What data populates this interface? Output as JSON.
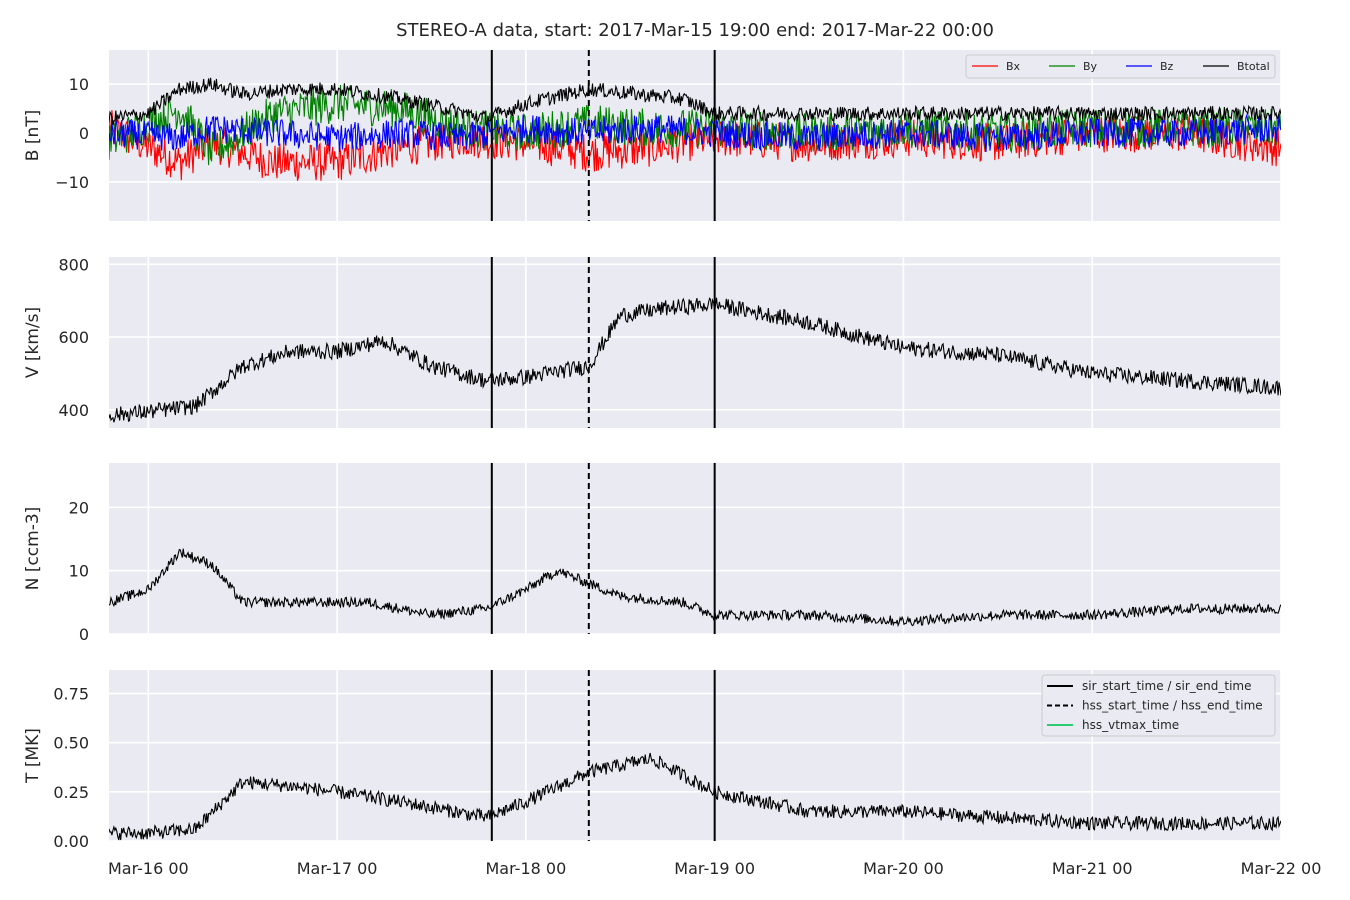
{
  "title": "STEREO-A data, start: 2017-Mar-15 19:00  end: 2017-Mar-22 00:00",
  "chart_data": {
    "type": "line",
    "x_axis": {
      "start": "2017-03-15T19:00",
      "end": "2017-03-22T00:00",
      "tick_labels": [
        "Mar-16 00",
        "Mar-17 00",
        "Mar-18 00",
        "Mar-19 00",
        "Mar-20 00",
        "Mar-21 00",
        "Mar-22 00"
      ],
      "tick_times": [
        "2017-03-16T00:00",
        "2017-03-17T00:00",
        "2017-03-18T00:00",
        "2017-03-19T00:00",
        "2017-03-20T00:00",
        "2017-03-21T00:00",
        "2017-03-22T00:00"
      ]
    },
    "vertical_lines": {
      "sir_start_time": "2017-03-17T19:40",
      "hss_start_time": "2017-03-18T08:00",
      "sir_end_time": "2017-03-19T00:00"
    },
    "grid": true,
    "background": "#eaeaf2",
    "panels": [
      {
        "ylabel": "B [nT]",
        "ylim": [
          -18,
          17
        ],
        "yticks": [
          -10,
          0,
          10
        ],
        "ytick_labels": [
          "−10",
          "0",
          "10"
        ],
        "legend": "top-right",
        "series": [
          {
            "name": "Bx",
            "color": "#ff0000",
            "x": [
              "2017-03-15T19:00",
              "2017-03-16T04:00",
              "2017-03-16T08:00",
              "2017-03-16T16:00",
              "2017-03-17T00:00",
              "2017-03-17T08:00",
              "2017-03-17T16:00",
              "2017-03-18T00:00",
              "2017-03-18T08:00",
              "2017-03-18T16:00",
              "2017-03-19T00:00",
              "2017-03-19T12:00",
              "2017-03-20T00:00",
              "2017-03-20T12:00",
              "2017-03-21T00:00",
              "2017-03-21T12:00",
              "2017-03-22T00:00"
            ],
            "values": [
              1,
              -6,
              -2,
              -6,
              -6,
              -3,
              -1,
              -2,
              -4,
              -3,
              -1,
              -2,
              -1,
              -2,
              0,
              0,
              -3
            ]
          },
          {
            "name": "By",
            "color": "#008000",
            "x": [
              "2017-03-15T19:00",
              "2017-03-16T04:00",
              "2017-03-16T08:00",
              "2017-03-16T16:00",
              "2017-03-17T00:00",
              "2017-03-17T08:00",
              "2017-03-17T16:00",
              "2017-03-18T00:00",
              "2017-03-18T08:00",
              "2017-03-18T16:00",
              "2017-03-19T00:00",
              "2017-03-19T12:00",
              "2017-03-20T00:00",
              "2017-03-20T12:00",
              "2017-03-21T00:00",
              "2017-03-21T12:00",
              "2017-03-22T00:00"
            ],
            "values": [
              -2,
              5,
              -4,
              4,
              6,
              5,
              1,
              0,
              2,
              1,
              1,
              0,
              1,
              0,
              1,
              1,
              1
            ]
          },
          {
            "name": "Bz",
            "color": "#0000ff",
            "x": [
              "2017-03-15T19:00",
              "2017-03-16T04:00",
              "2017-03-16T08:00",
              "2017-03-16T16:00",
              "2017-03-17T00:00",
              "2017-03-17T08:00",
              "2017-03-17T16:00",
              "2017-03-18T00:00",
              "2017-03-18T08:00",
              "2017-03-18T16:00",
              "2017-03-19T00:00",
              "2017-03-19T12:00",
              "2017-03-20T00:00",
              "2017-03-20T12:00",
              "2017-03-21T00:00",
              "2017-03-21T12:00",
              "2017-03-22T00:00"
            ],
            "values": [
              0,
              -1,
              1,
              0,
              -1,
              0,
              -1,
              1,
              0,
              1,
              0,
              -1,
              0,
              -1,
              0,
              0,
              1
            ]
          },
          {
            "name": "Btotal",
            "color": "#000000",
            "x": [
              "2017-03-15T19:00",
              "2017-03-16T00:00",
              "2017-03-16T04:00",
              "2017-03-16T08:00",
              "2017-03-16T12:00",
              "2017-03-16T18:00",
              "2017-03-17T00:00",
              "2017-03-17T08:00",
              "2017-03-17T14:00",
              "2017-03-17T19:00",
              "2017-03-18T00:00",
              "2017-03-18T08:00",
              "2017-03-18T14:00",
              "2017-03-18T20:00",
              "2017-03-19T00:00",
              "2017-03-19T12:00",
              "2017-03-20T00:00",
              "2017-03-20T12:00",
              "2017-03-21T00:00",
              "2017-03-21T12:00",
              "2017-03-22T00:00"
            ],
            "values": [
              3,
              4,
              9,
              10,
              8,
              9,
              9,
              7,
              5,
              3,
              6,
              9,
              8,
              7,
              4,
              4,
              4,
              4,
              4,
              4,
              4
            ]
          }
        ]
      },
      {
        "ylabel": "V [km/s]",
        "ylim": [
          350,
          820
        ],
        "yticks": [
          400,
          600,
          800
        ],
        "ytick_labels": [
          "400",
          "600",
          "800"
        ],
        "series": [
          {
            "name": "",
            "color": "#000000",
            "x": [
              "2017-03-15T19:00",
              "2017-03-16T00:00",
              "2017-03-16T06:00",
              "2017-03-16T12:00",
              "2017-03-16T18:00",
              "2017-03-17T00:00",
              "2017-03-17T06:00",
              "2017-03-17T12:00",
              "2017-03-17T19:00",
              "2017-03-18T00:00",
              "2017-03-18T08:00",
              "2017-03-18T12:00",
              "2017-03-18T18:00",
              "2017-03-19T00:00",
              "2017-03-19T12:00",
              "2017-03-20T00:00",
              "2017-03-20T12:00",
              "2017-03-21T00:00",
              "2017-03-21T12:00",
              "2017-03-22T00:00"
            ],
            "values": [
              385,
              395,
              410,
              520,
              560,
              560,
              590,
              520,
              480,
              490,
              520,
              660,
              680,
              690,
              640,
              570,
              550,
              500,
              480,
              460
            ]
          }
        ]
      },
      {
        "ylabel": "N [ccm-3]",
        "ylim": [
          0,
          27
        ],
        "yticks": [
          0,
          10,
          20
        ],
        "ytick_labels": [
          "0",
          "10",
          "20"
        ],
        "series": [
          {
            "name": "",
            "color": "#000000",
            "x": [
              "2017-03-15T19:00",
              "2017-03-16T00:00",
              "2017-03-16T04:00",
              "2017-03-16T08:00",
              "2017-03-16T12:00",
              "2017-03-16T20:00",
              "2017-03-17T04:00",
              "2017-03-17T12:00",
              "2017-03-17T19:00",
              "2017-03-18T00:00",
              "2017-03-18T04:00",
              "2017-03-18T12:00",
              "2017-03-18T20:00",
              "2017-03-19T00:00",
              "2017-03-19T12:00",
              "2017-03-20T00:00",
              "2017-03-20T12:00",
              "2017-03-21T00:00",
              "2017-03-21T12:00",
              "2017-03-22T00:00"
            ],
            "values": [
              5,
              7,
              13,
              11,
              5,
              5,
              5,
              3,
              4,
              7,
              10,
              6,
              5,
              3,
              3,
              2,
              3,
              3,
              4,
              4
            ]
          }
        ]
      },
      {
        "ylabel": "T [MK]",
        "ylim": [
          0,
          0.87
        ],
        "yticks": [
          0.0,
          0.25,
          0.5,
          0.75
        ],
        "ytick_labels": [
          "0.00",
          "0.25",
          "0.50",
          "0.75"
        ],
        "legend": "top-right",
        "series": [
          {
            "name": "",
            "color": "#000000",
            "x": [
              "2017-03-15T19:00",
              "2017-03-16T00:00",
              "2017-03-16T06:00",
              "2017-03-16T12:00",
              "2017-03-16T18:00",
              "2017-03-17T00:00",
              "2017-03-17T08:00",
              "2017-03-17T19:00",
              "2017-03-18T00:00",
              "2017-03-18T08:00",
              "2017-03-18T16:00",
              "2017-03-19T00:00",
              "2017-03-19T12:00",
              "2017-03-20T00:00",
              "2017-03-20T12:00",
              "2017-03-21T00:00",
              "2017-03-21T12:00",
              "2017-03-22T00:00"
            ],
            "values": [
              0.04,
              0.04,
              0.06,
              0.3,
              0.28,
              0.25,
              0.2,
              0.12,
              0.2,
              0.35,
              0.42,
              0.25,
              0.15,
              0.15,
              0.12,
              0.09,
              0.09,
              0.09
            ]
          }
        ]
      }
    ],
    "legend_lines": [
      {
        "label": "sir_start_time / sir_end_time",
        "color": "#000000",
        "style": "solid"
      },
      {
        "label": "hss_start_time / hss_end_time",
        "color": "#000000",
        "style": "dashed"
      },
      {
        "label": "hss_vtmax_time",
        "color": "#2ecc71",
        "style": "solid"
      }
    ]
  }
}
